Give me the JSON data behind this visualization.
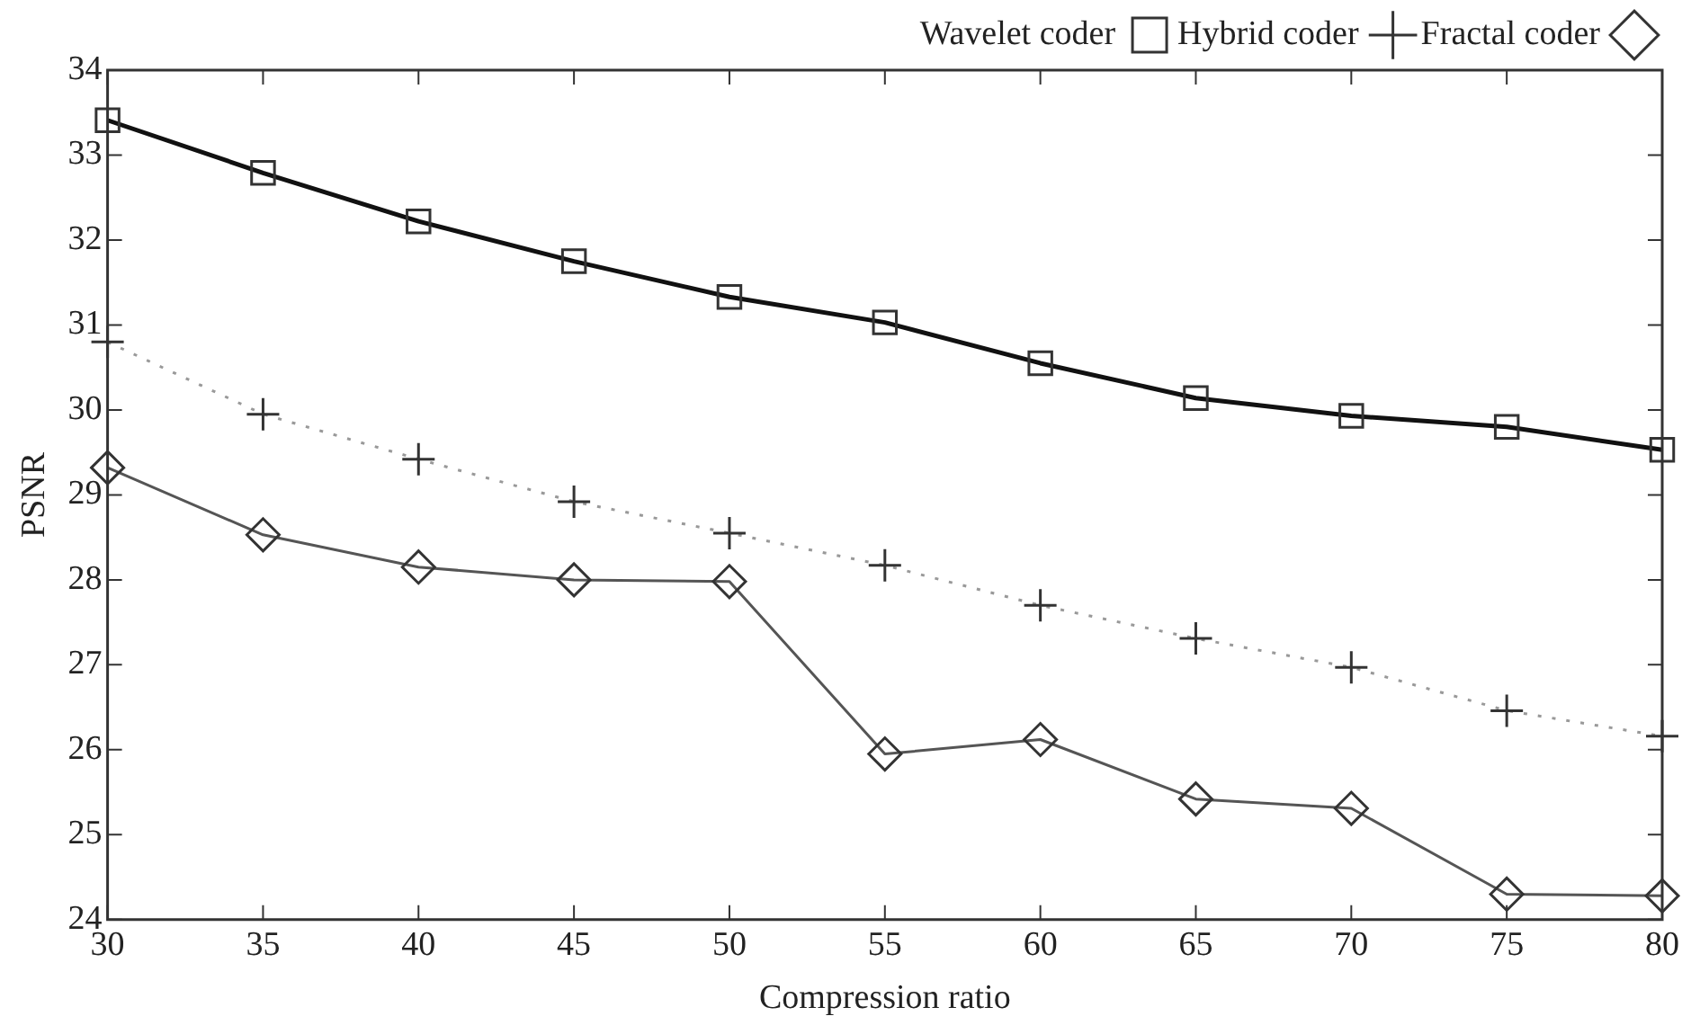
{
  "chart_data": {
    "type": "line",
    "xlabel": "Compression ratio",
    "ylabel": "PSNR",
    "x": [
      30,
      35,
      40,
      45,
      50,
      55,
      60,
      65,
      70,
      75,
      80
    ],
    "series": [
      {
        "name": "Fractal coder",
        "color": "#555555",
        "marker": "diamond",
        "line_style": "solid",
        "values": [
          29.32,
          28.53,
          28.15,
          28.0,
          27.98,
          25.95,
          26.12,
          25.42,
          25.31,
          24.3,
          24.28
        ]
      },
      {
        "name": "Hybrid coder",
        "color": "#999999",
        "marker": "cross",
        "line_style": "dotted",
        "values": [
          30.8,
          29.95,
          29.42,
          28.92,
          28.55,
          28.17,
          27.7,
          27.31,
          26.97,
          26.46,
          26.16
        ]
      },
      {
        "name": "Wavelet coder",
        "color": "#111111",
        "marker": "square",
        "line_style": "solid",
        "values": [
          33.41,
          32.79,
          32.22,
          31.75,
          31.33,
          31.03,
          30.55,
          30.14,
          29.93,
          29.8,
          29.53
        ]
      }
    ],
    "xlim": [
      30,
      80
    ],
    "xticks": [
      30,
      35,
      40,
      45,
      50,
      55,
      60,
      65,
      70,
      75,
      80
    ],
    "ylim": [
      24,
      34
    ],
    "yticks": [
      24,
      25,
      26,
      27,
      28,
      29,
      30,
      31,
      32,
      33,
      34
    ],
    "grid": false,
    "legend": "top right"
  }
}
